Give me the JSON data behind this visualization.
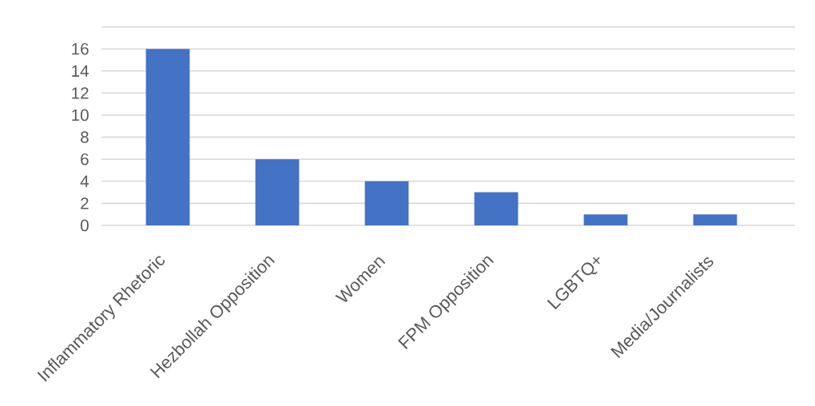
{
  "chart_data": {
    "type": "bar",
    "categories": [
      "Inflammatory Rhetoric",
      "Hezbollah Opposition",
      "Women",
      "FPM Opposition",
      "LGBTQ+",
      "Media/Journalists"
    ],
    "values": [
      16,
      6,
      4,
      3,
      1,
      1
    ],
    "color": "#4472c4",
    "ylim": [
      0,
      18
    ],
    "yticks": [
      0,
      2,
      4,
      6,
      8,
      10,
      12,
      14,
      16,
      {
        "value": 18,
        "label": null
      }
    ],
    "grid": "y"
  }
}
